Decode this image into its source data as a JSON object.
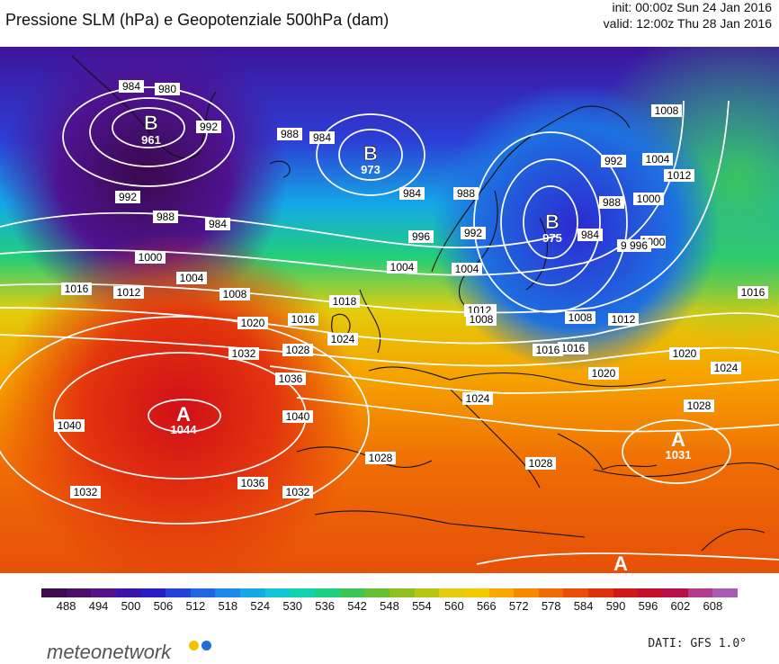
{
  "header": {
    "title": "Pressione SLM (hPa) e Geopotenziale 500hPa (dam)",
    "init": "init: 00:00z Sun 24 Jan 2016",
    "valid": "valid: 12:00z Thu 28 Jan 2016"
  },
  "pressure_centers": [
    {
      "letter": "B",
      "value": "961"
    },
    {
      "letter": "B",
      "value": "973"
    },
    {
      "letter": "B",
      "value": "975"
    },
    {
      "letter": "A",
      "value": "1044"
    },
    {
      "letter": "A",
      "value": "1031"
    },
    {
      "letter": "A",
      "value": ""
    }
  ],
  "isobar_labels": [
    "984",
    "980",
    "992",
    "988",
    "984",
    "992",
    "988",
    "984",
    "984",
    "988",
    "992",
    "996",
    "1000",
    "1004",
    "1008",
    "1016",
    "1012",
    "1004",
    "1008",
    "996",
    "1000",
    "1016",
    "1020",
    "1024",
    "1028",
    "1032",
    "1036",
    "1040",
    "1040",
    "1032",
    "1036",
    "1032",
    "1028",
    "1024",
    "1020",
    "1016",
    "1012",
    "1008",
    "1004",
    "1000",
    "992",
    "988",
    "984",
    "996",
    "1008",
    "1004",
    "1012",
    "1016",
    "1020",
    "1024",
    "1028",
    "1028",
    "1018",
    "1016",
    "1012",
    "1008"
  ],
  "legend": {
    "ticks": [
      "488",
      "494",
      "500",
      "506",
      "512",
      "518",
      "524",
      "530",
      "536",
      "542",
      "548",
      "554",
      "560",
      "566",
      "572",
      "578",
      "584",
      "590",
      "596",
      "602",
      "608"
    ],
    "colors": [
      "#3b0a4f",
      "#4b0f6b",
      "#551489",
      "#3d14a8",
      "#2a1fc5",
      "#2444d8",
      "#1f66e0",
      "#1e88e6",
      "#17a9e6",
      "#14c4d8",
      "#12d3b0",
      "#1ecf7f",
      "#3cc553",
      "#64c134",
      "#8fc11e",
      "#b9c514",
      "#e2cc0c",
      "#f6c800",
      "#f7a900",
      "#f58a00",
      "#f06a05",
      "#e94d0a",
      "#dd330d",
      "#cf1a18",
      "#c20f2c",
      "#b60f4a",
      "#b23a8a",
      "#a95ab5"
    ]
  },
  "brand": "meteonetwork",
  "source": "DATI: GFS 1.0°"
}
